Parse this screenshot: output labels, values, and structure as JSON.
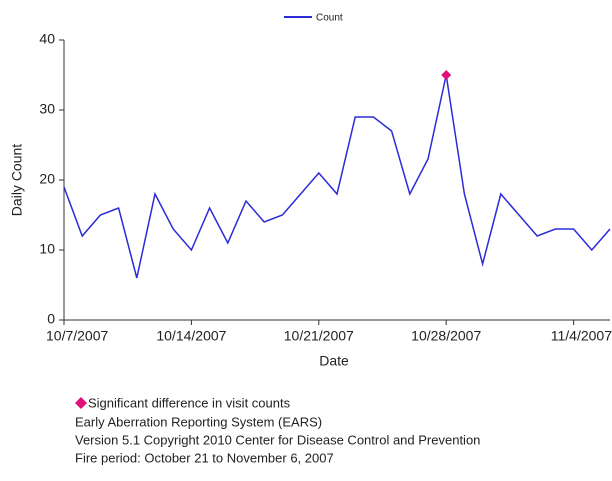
{
  "chart_data": {
    "type": "line",
    "y_label": "Daily Count",
    "x_label": "Date",
    "x": [
      "10/7/2007",
      "10/8/2007",
      "10/9/2007",
      "10/10/2007",
      "10/11/2007",
      "10/12/2007",
      "10/13/2007",
      "10/14/2007",
      "10/15/2007",
      "10/16/2007",
      "10/17/2007",
      "10/18/2007",
      "10/19/2007",
      "10/20/2007",
      "10/21/2007",
      "10/22/2007",
      "10/23/2007",
      "10/24/2007",
      "10/25/2007",
      "10/26/2007",
      "10/27/2007",
      "10/28/2007",
      "10/29/2007",
      "10/30/2007",
      "10/31/2007",
      "11/1/2007",
      "11/2/2007",
      "11/3/2007",
      "11/4/2007",
      "11/5/2007",
      "11/6/2007"
    ],
    "series": [
      {
        "name": "Count",
        "color": "#2b2bd9",
        "values": [
          19,
          12,
          15,
          16,
          6,
          18,
          13,
          10,
          16,
          11,
          17,
          14,
          15,
          18,
          21,
          18,
          29,
          29,
          27,
          18,
          23,
          35,
          18,
          8,
          18,
          15,
          12,
          13,
          13,
          10,
          13
        ]
      },
      {
        "name": "Significant difference in visit counts",
        "color": "#e0107a",
        "marker": "diamond",
        "values": [
          null,
          null,
          null,
          null,
          null,
          null,
          null,
          null,
          null,
          null,
          null,
          null,
          null,
          null,
          null,
          null,
          null,
          null,
          null,
          null,
          null,
          35,
          null,
          null,
          null,
          null,
          null,
          null,
          null,
          null,
          null
        ]
      }
    ],
    "xticks": [
      "10/7/2007",
      "10/14/2007",
      "10/21/2007",
      "10/28/2007",
      "11/4/2007"
    ],
    "ylim": [
      0,
      40
    ],
    "yticks": [
      0,
      10,
      20,
      30,
      40
    ],
    "notes": [
      "Early Aberration Reporting System (EARS)",
      "Version 5.1 Copyright 2010 Center for Disease Control and Prevention",
      "Fire period: October 21 to November 6, 2007"
    ]
  }
}
